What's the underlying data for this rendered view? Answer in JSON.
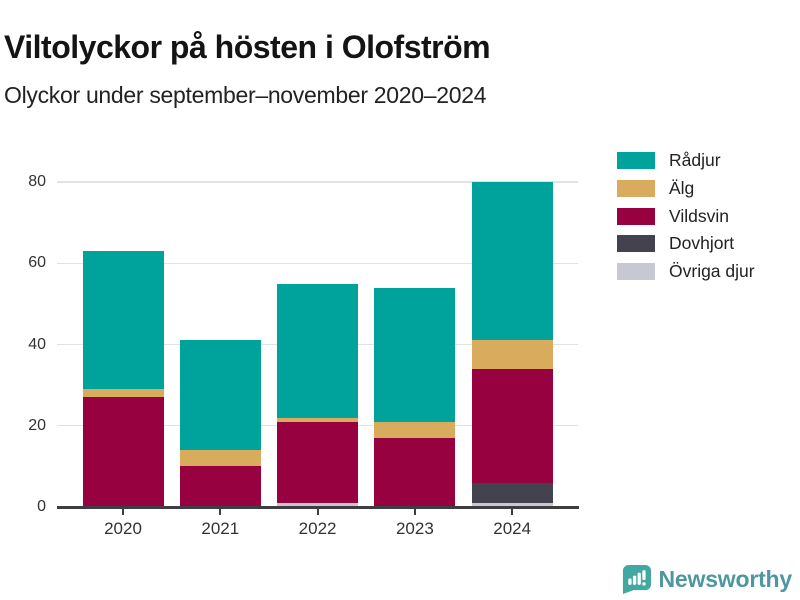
{
  "header": {
    "title": "Viltolyckor på hösten i Olofström",
    "subtitle": "Olyckor under september–november 2020–2024"
  },
  "chart_data": {
    "type": "bar",
    "stacked": true,
    "title": "Viltolyckor på hösten i Olofström",
    "subtitle": "Olyckor under september–november 2020–2024",
    "categories": [
      "2020",
      "2021",
      "2022",
      "2023",
      "2024"
    ],
    "series": [
      {
        "name": "Rådjur",
        "color": "#00A39B",
        "values": [
          34,
          27,
          33,
          33,
          39
        ]
      },
      {
        "name": "Älg",
        "color": "#D8AC5C",
        "values": [
          2,
          4,
          1,
          4,
          7
        ]
      },
      {
        "name": "Vildsvin",
        "color": "#98013F",
        "values": [
          27,
          10,
          20,
          17,
          28
        ]
      },
      {
        "name": "Dovhjort",
        "color": "#44424F",
        "values": [
          0,
          0,
          0,
          0,
          5
        ]
      },
      {
        "name": "Övriga djur",
        "color": "#C7C8D1",
        "values": [
          0,
          0,
          1,
          0,
          1
        ]
      }
    ],
    "xlabel": "",
    "ylabel": "",
    "ylim": [
      0,
      80
    ],
    "yticks": [
      0,
      20,
      40,
      60,
      80
    ],
    "grid": "horizontal",
    "legend_position": "right",
    "colors": {
      "gridline": "#e2e2e2",
      "axis": "#3e3e40",
      "tick_label": "#333333"
    }
  },
  "footer": {
    "brand": "Newsworthy",
    "brand_text_color": "#4F97A0",
    "brand_icon": "bar-chart-speech-bubble-icon",
    "brand_icon_color": "#43A7A2"
  }
}
